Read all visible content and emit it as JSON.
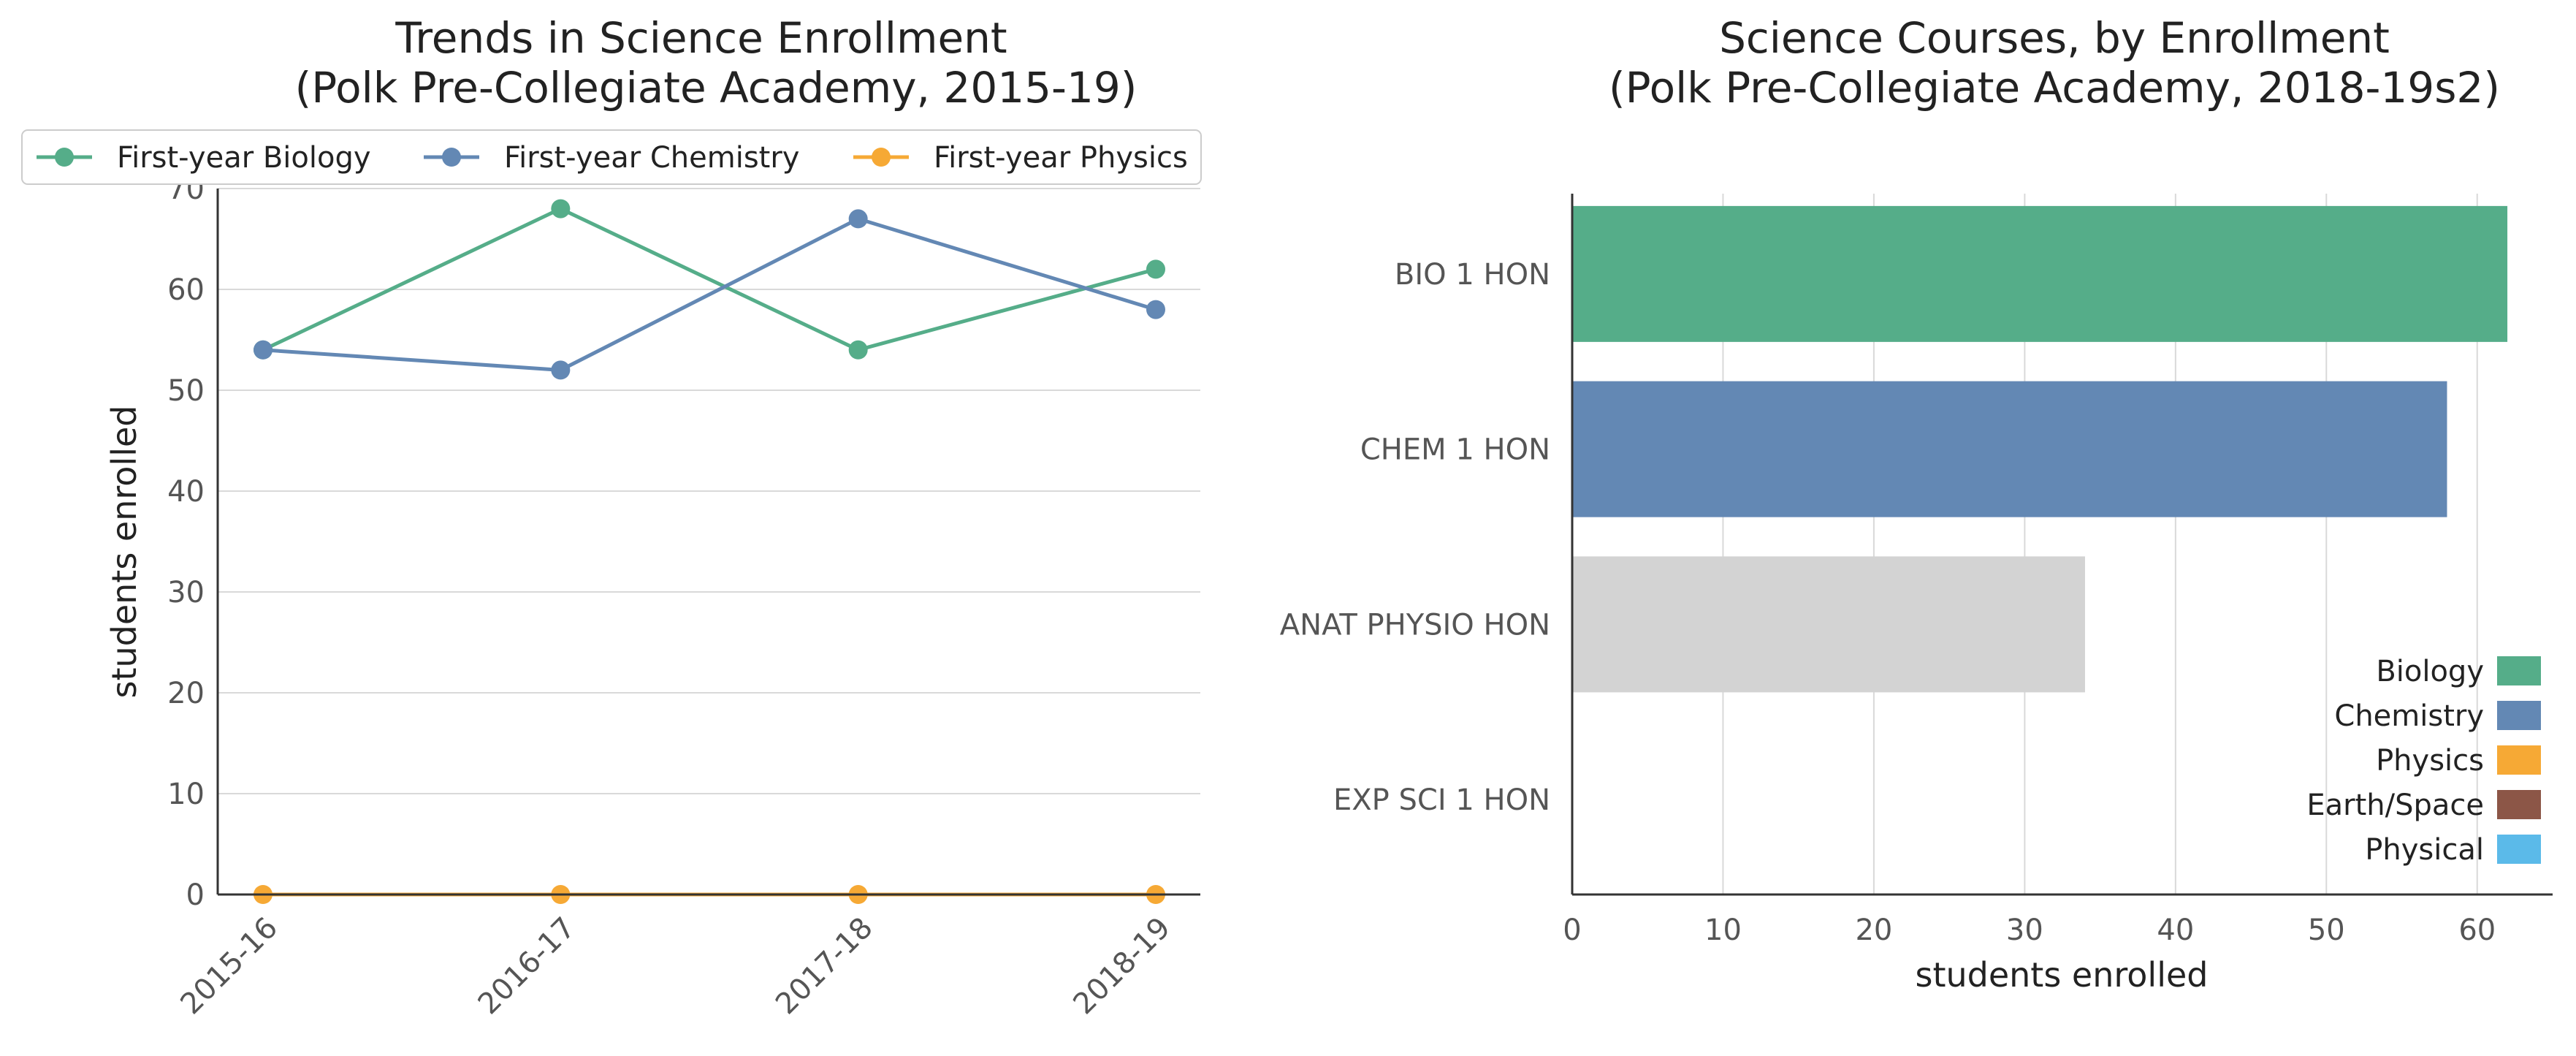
{
  "chart_data": [
    {
      "type": "line",
      "title": [
        "Trends in Science Enrollment",
        "(Polk Pre-Collegiate Academy, 2015-19)"
      ],
      "ylabel": "students enrolled",
      "xlabel": "",
      "categories": [
        "2015-16",
        "2016-17",
        "2017-18",
        "2018-19"
      ],
      "ylim": [
        0,
        70
      ],
      "yticks": [
        0,
        10,
        20,
        30,
        40,
        50,
        60,
        70
      ],
      "grid": "horizontal",
      "legend": "top",
      "series": [
        {
          "name": "First-year Biology",
          "color": "#55ad89",
          "values": [
            54,
            68,
            54,
            62
          ]
        },
        {
          "name": "First-year Chemistry",
          "color": "#6388b4",
          "values": [
            54,
            52,
            67,
            58
          ]
        },
        {
          "name": "First-year Physics",
          "color": "#f6a935",
          "values": [
            0,
            0,
            0,
            0
          ]
        }
      ]
    },
    {
      "type": "bar",
      "orientation": "horizontal",
      "title": [
        "Science Courses, by Enrollment",
        "(Polk Pre-Collegiate Academy, 2018-19s2)"
      ],
      "xlabel": "students enrolled",
      "ylabel": "",
      "categories": [
        "BIO 1 HON",
        "CHEM 1 HON",
        "ANAT PHYSIO HON",
        "EXP SCI 1 HON"
      ],
      "values": [
        62,
        58,
        34,
        0
      ],
      "bar_colors": [
        "#55ad89",
        "#6388b4",
        "#d3d3d3",
        "#d3d3d3"
      ],
      "xlim": [
        0,
        65
      ],
      "xticks": [
        0,
        10,
        20,
        30,
        40,
        50,
        60
      ],
      "grid": "vertical",
      "legend": "bottom-right",
      "legend_entries": [
        {
          "name": "Biology",
          "color": "#55ad89"
        },
        {
          "name": "Chemistry",
          "color": "#6388b4"
        },
        {
          "name": "Physics",
          "color": "#f6a935"
        },
        {
          "name": "Earth/Space",
          "color": "#8c5647"
        },
        {
          "name": "Physical",
          "color": "#5bbae9"
        }
      ]
    }
  ]
}
